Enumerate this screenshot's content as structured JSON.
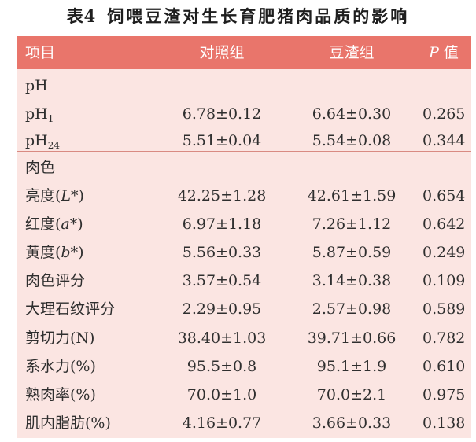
{
  "caption": {
    "number": "表4",
    "title": "饲喂豆渣对生长育肥猪肉品质的影响"
  },
  "table": {
    "headers": {
      "item": "项目",
      "control": "对照组",
      "treatment": "豆渣组",
      "p_italic": "P",
      "p_rest": " 值"
    },
    "groups": {
      "ph": "pH",
      "color": "肉色"
    },
    "rows": {
      "ph1": {
        "label_main": "pH",
        "label_sub": "1",
        "control": "6.78±0.12",
        "treatment": "6.64±0.30",
        "p": "0.265"
      },
      "ph24": {
        "label_main": "pH",
        "label_sub": "24",
        "control": "5.51±0.04",
        "treatment": "5.54±0.08",
        "p": "0.344"
      },
      "lightness": {
        "label_pre": "亮度(",
        "label_var": "L",
        "label_post": "*)",
        "control": "42.25±1.28",
        "treatment": "42.61±1.59",
        "p": "0.654"
      },
      "redness": {
        "label_pre": "红度(",
        "label_var": "a",
        "label_post": "*)",
        "control": "6.97±1.18",
        "treatment": "7.26±1.12",
        "p": "0.642"
      },
      "yellowness": {
        "label_pre": "黄度(",
        "label_var": "b",
        "label_post": "*)",
        "control": "5.56±0.33",
        "treatment": "5.87±0.59",
        "p": "0.249"
      },
      "color_score": {
        "label": "肉色评分",
        "control": "3.57±0.54",
        "treatment": "3.14±0.38",
        "p": "0.109"
      },
      "marbling": {
        "label": "大理石纹评分",
        "control": "2.29±0.95",
        "treatment": "2.57±0.98",
        "p": "0.589"
      },
      "shear": {
        "label": "剪切力(N)",
        "control": "38.40±1.03",
        "treatment": "39.71±0.66",
        "p": "0.782"
      },
      "water": {
        "label": "系水力(%)",
        "control": "95.5±0.8",
        "treatment": "95.1±1.9",
        "p": "0.610"
      },
      "cooked": {
        "label": "熟肉率(%)",
        "control": "70.0±1.0",
        "treatment": "70.0±2.1",
        "p": "0.975"
      },
      "fat": {
        "label": "肌内脂肪(%)",
        "control": "4.16±0.77",
        "treatment": "3.66±0.33",
        "p": "0.138"
      }
    }
  },
  "colors": {
    "header_bg": "#e9756b",
    "body_bg": "#fbe5e2",
    "separator": "#d98a82"
  }
}
